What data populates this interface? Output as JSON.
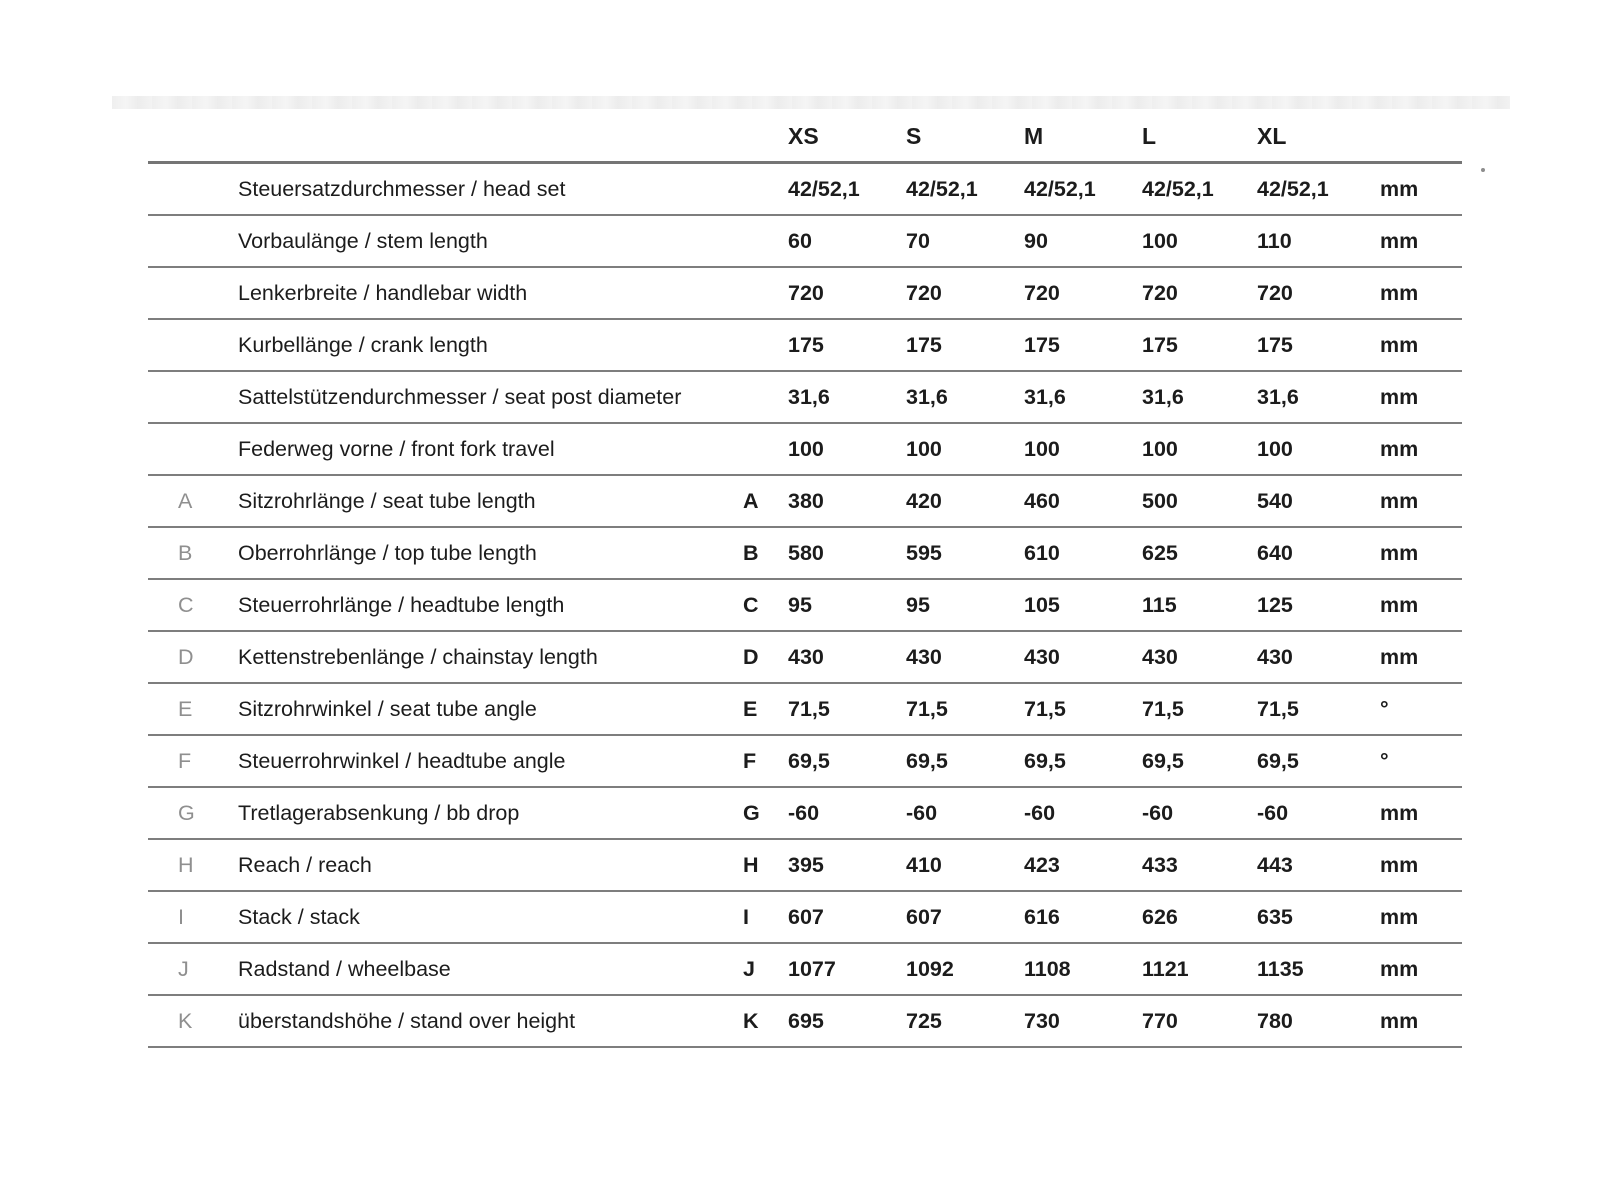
{
  "table": {
    "header": {
      "sizes": [
        "XS",
        "S",
        "M",
        "L",
        "XL"
      ]
    },
    "rows": [
      {
        "letter": "",
        "label": "Steuersatzdurchmesser / head set",
        "values": [
          "42/52,1",
          "42/52,1",
          "42/52,1",
          "42/52,1",
          "42/52,1"
        ],
        "unit": "mm"
      },
      {
        "letter": "",
        "label": "Vorbaulänge / stem length",
        "values": [
          "60",
          "70",
          "90",
          "100",
          "110"
        ],
        "unit": "mm"
      },
      {
        "letter": "",
        "label": "Lenkerbreite / handlebar width",
        "values": [
          "720",
          "720",
          "720",
          "720",
          "720"
        ],
        "unit": "mm"
      },
      {
        "letter": "",
        "label": "Kurbellänge / crank length",
        "values": [
          "175",
          "175",
          "175",
          "175",
          "175"
        ],
        "unit": "mm"
      },
      {
        "letter": "",
        "label": "Sattelstützendurchmesser / seat post diameter",
        "values": [
          "31,6",
          "31,6",
          "31,6",
          "31,6",
          "31,6"
        ],
        "unit": "mm"
      },
      {
        "letter": "",
        "label": "Federweg vorne / front fork travel",
        "values": [
          "100",
          "100",
          "100",
          "100",
          "100"
        ],
        "unit": "mm"
      },
      {
        "letter": "A",
        "label": "Sitzrohrlänge / seat tube length",
        "values": [
          "380",
          "420",
          "460",
          "500",
          "540"
        ],
        "unit": "mm"
      },
      {
        "letter": "B",
        "label": "Oberrohrlänge / top tube length",
        "values": [
          "580",
          "595",
          "610",
          "625",
          "640"
        ],
        "unit": "mm"
      },
      {
        "letter": "C",
        "label": "Steuerrohrlänge / headtube length",
        "values": [
          "95",
          "95",
          "105",
          "115",
          "125"
        ],
        "unit": "mm"
      },
      {
        "letter": "D",
        "label": "Kettenstrebenlänge / chainstay length",
        "values": [
          "430",
          "430",
          "430",
          "430",
          "430"
        ],
        "unit": "mm"
      },
      {
        "letter": "E",
        "label": "Sitzrohrwinkel / seat tube angle",
        "values": [
          "71,5",
          "71,5",
          "71,5",
          "71,5",
          "71,5"
        ],
        "unit": "°"
      },
      {
        "letter": "F",
        "label": "Steuerrohrwinkel / headtube angle",
        "values": [
          "69,5",
          "69,5",
          "69,5",
          "69,5",
          "69,5"
        ],
        "unit": "°"
      },
      {
        "letter": "G",
        "label": "Tretlagerabsenkung / bb drop",
        "values": [
          "-60",
          "-60",
          "-60",
          "-60",
          "-60"
        ],
        "unit": "mm"
      },
      {
        "letter": "H",
        "label": "Reach / reach",
        "values": [
          "395",
          "410",
          "423",
          "433",
          "443"
        ],
        "unit": "mm"
      },
      {
        "letter": "I",
        "label": "Stack / stack",
        "values": [
          "607",
          "607",
          "616",
          "626",
          "635"
        ],
        "unit": "mm"
      },
      {
        "letter": "J",
        "label": "Radstand / wheelbase",
        "values": [
          "1077",
          "1092",
          "1108",
          "1121",
          "1135"
        ],
        "unit": "mm"
      },
      {
        "letter": "K",
        "label": "überstandshöhe / stand over height",
        "values": [
          "695",
          "725",
          "730",
          "770",
          "780"
        ],
        "unit": "mm"
      }
    ]
  },
  "colors": {
    "line": "#7e7e7e",
    "gray_letter": "#8f8f8f",
    "text": "#1c1c1c"
  }
}
